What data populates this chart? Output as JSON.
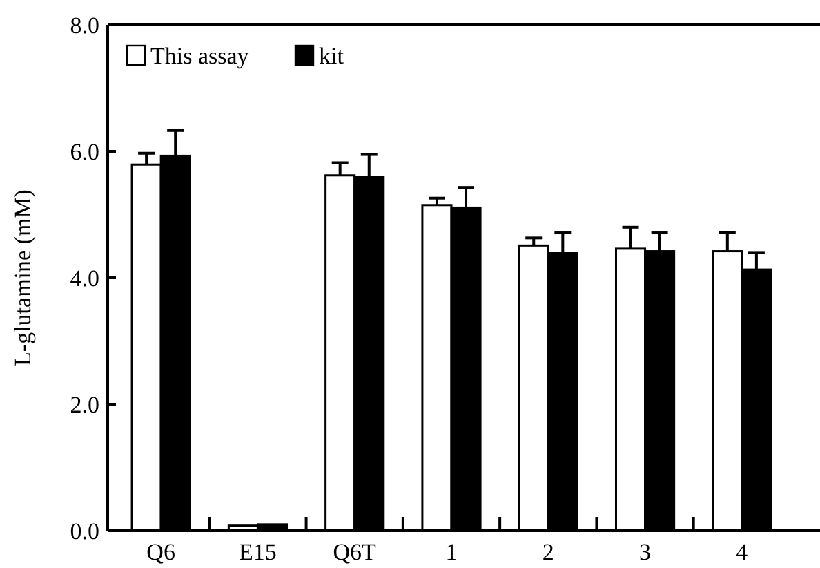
{
  "chart_data": {
    "type": "bar",
    "ylabel": "L-glutamine (mM)",
    "categories": [
      "Q6",
      "E15",
      "Q6T",
      "1",
      "2",
      "3",
      "4"
    ],
    "series": [
      {
        "name": "This assay",
        "color": "#ffffff",
        "values": [
          5.79,
          0.08,
          5.62,
          5.15,
          4.51,
          4.46,
          4.42
        ],
        "errors": [
          0.18,
          null,
          0.2,
          0.11,
          0.12,
          0.34,
          0.3
        ]
      },
      {
        "name": "kit",
        "color": "#000000",
        "values": [
          5.93,
          0.1,
          5.6,
          5.11,
          4.39,
          4.42,
          4.13
        ],
        "errors": [
          0.4,
          null,
          0.35,
          0.32,
          0.32,
          0.29,
          0.27
        ]
      }
    ],
    "ylim": [
      0,
      8
    ],
    "yticks": [
      {
        "value": 0,
        "label": "0.0"
      },
      {
        "value": 2,
        "label": "2.0"
      },
      {
        "value": 4,
        "label": "4.0"
      },
      {
        "value": 6,
        "label": "6.0"
      },
      {
        "value": 8,
        "label": "8.0"
      }
    ],
    "legend": "top left",
    "grid": false
  }
}
